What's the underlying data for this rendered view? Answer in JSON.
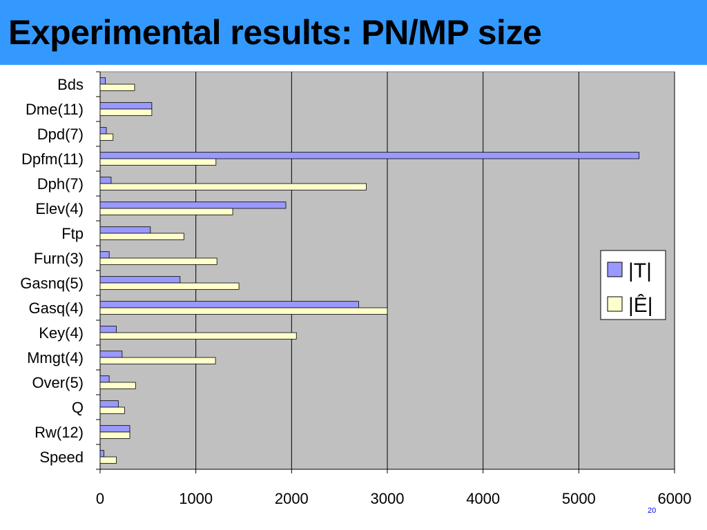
{
  "slide": {
    "title": "Experimental results: PN/MP size",
    "page_number": "20"
  },
  "colors": {
    "header_bg": "#3399ff",
    "plot_bg": "#c0c0c0",
    "series_T": "#9999ff",
    "series_E": "#ffffcc"
  },
  "chart_data": {
    "type": "bar",
    "orientation": "horizontal",
    "categories": [
      "Bds",
      "Dme(11)",
      "Dpd(7)",
      "Dpfm(11)",
      "Dph(7)",
      "Elev(4)",
      "Ftp",
      "Furn(3)",
      "Gasnq(5)",
      "Gasq(4)",
      "Key(4)",
      "Mmgt(4)",
      "Over(5)",
      "Q",
      "Rw(12)",
      "Speed"
    ],
    "series": [
      {
        "name": "|T|",
        "values": [
          55,
          540,
          65,
          5630,
          115,
          1940,
          525,
          95,
          835,
          2700,
          170,
          230,
          95,
          190,
          310,
          40
        ]
      },
      {
        "name": "|Ê|",
        "values": [
          360,
          540,
          135,
          1210,
          2780,
          1385,
          875,
          1220,
          1450,
          3000,
          2050,
          1205,
          370,
          255,
          310,
          170
        ]
      }
    ],
    "xlim": [
      0,
      6000
    ],
    "x_ticks": [
      "0",
      "1000",
      "2000",
      "3000",
      "4000",
      "5000",
      "6000"
    ],
    "grid": true,
    "legend_position": "right"
  }
}
